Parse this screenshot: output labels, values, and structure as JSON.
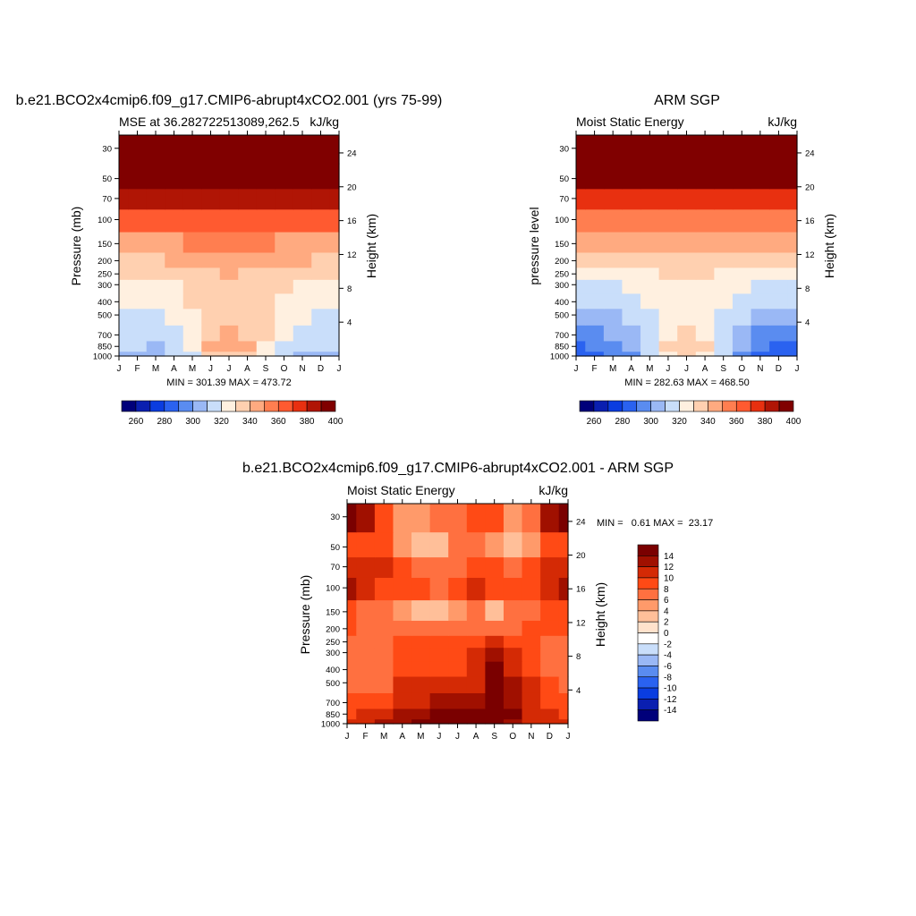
{
  "colors": {
    "mse_palette": [
      "#00007a",
      "#0a1fb0",
      "#0a3de0",
      "#2a62f0",
      "#5a8cf0",
      "#9ab8f5",
      "#c9defa",
      "#fff0e0",
      "#ffd0b0",
      "#ffaa80",
      "#ff7e50",
      "#ff5a30",
      "#e83010",
      "#b01505",
      "#800000"
    ],
    "diff_palette": [
      "#00007a",
      "#0a1fb0",
      "#0a3de0",
      "#2a62f0",
      "#5a8cf0",
      "#9ab8f5",
      "#c9defa",
      "#ffffff",
      "#ffe2cc",
      "#ffbf99",
      "#ff9a6a",
      "#ff7040",
      "#ff4a15",
      "#d42a05",
      "#a01000",
      "#7a0000"
    ]
  },
  "panels": {
    "model": {
      "title": "b.e21.BCO2x4cmip6.f09_g17.CMIP6-abrupt4xCO2.001 (yrs 75-99)",
      "left_label": "MSE at 36.282722513089,262.5",
      "right_label": "kJ/kg",
      "ylabel": "Pressure (mb)",
      "y2label": "Height (km)",
      "stats": "MIN = 301.39 MAX = 473.72"
    },
    "obs": {
      "title": "ARM SGP",
      "left_label": "Moist Static Energy",
      "right_label": "kJ/kg",
      "ylabel": "pressure level",
      "y2label": "Height (km)",
      "stats": "MIN = 282.63 MAX = 468.50"
    },
    "diff": {
      "title": "b.e21.BCO2x4cmip6.f09_g17.CMIP6-abrupt4xCO2.001 - ARM SGP",
      "left_label": "Moist Static Energy",
      "right_label": "kJ/kg",
      "ylabel": "Pressure (mb)",
      "y2label": "Height (km)",
      "stats": "MIN =   0.61 MAX =  23.17"
    }
  },
  "chart_data": [
    {
      "type": "heatmap",
      "id": "model",
      "title": "b.e21.BCO2x4cmip6.f09_g17.CMIP6-abrupt4xCO2.001 (yrs 75-99)",
      "ylabel": "Pressure (mb)",
      "y2label": "Height (km)",
      "x_ticklabels": [
        "J",
        "F",
        "M",
        "A",
        "M",
        "J",
        "J",
        "A",
        "S",
        "O",
        "N",
        "D",
        "J"
      ],
      "y_ticklabels": [
        "30",
        "50",
        "70",
        "100",
        "150",
        "200",
        "250",
        "300",
        "400",
        "500",
        "700",
        "850",
        "1000"
      ],
      "y2_ticklabels": [
        "24",
        "20",
        "16",
        "12",
        "8",
        "4"
      ],
      "y2_ticks_km": [
        24,
        20,
        16,
        12,
        8,
        4
      ],
      "levels": [
        1000,
        850,
        700,
        500,
        400,
        300,
        250,
        200,
        150,
        100,
        70,
        50,
        30
      ],
      "values": [
        [
          308,
          307,
          305,
          310,
          318,
          332,
          337,
          334,
          322,
          313,
          308,
          306,
          308
        ],
        [
          311,
          310,
          309,
          313,
          323,
          340,
          343,
          341,
          328,
          317,
          311,
          310,
          311
        ],
        [
          316,
          315,
          314,
          318,
          327,
          338,
          341,
          338,
          332,
          321,
          316,
          315,
          316
        ],
        [
          318,
          318,
          318,
          322,
          328,
          333,
          331,
          333,
          331,
          326,
          320,
          318,
          318
        ],
        [
          322,
          322,
          322,
          325,
          330,
          334,
          334,
          334,
          332,
          328,
          324,
          322,
          322
        ],
        [
          326,
          326,
          326,
          329,
          333,
          336,
          336,
          336,
          334,
          331,
          327,
          326,
          326
        ],
        [
          331,
          331,
          331,
          333,
          336,
          339,
          340,
          339,
          337,
          334,
          332,
          331,
          331
        ],
        [
          339,
          339,
          339,
          341,
          343,
          345,
          345,
          345,
          344,
          342,
          340,
          339,
          339
        ],
        [
          348,
          348,
          348,
          349,
          350,
          351,
          351,
          351,
          350,
          349,
          348,
          348,
          348
        ],
        [
          362,
          362,
          361,
          361,
          361,
          362,
          363,
          364,
          364,
          364,
          363,
          362,
          362
        ],
        [
          384,
          384,
          383,
          383,
          383,
          384,
          384,
          384,
          385,
          386,
          385,
          384,
          384
        ],
        [
          420,
          421,
          422,
          423,
          425,
          427,
          428,
          427,
          425,
          423,
          421,
          420,
          420
        ],
        [
          460,
          460,
          462,
          464,
          466,
          468,
          469,
          468,
          466,
          464,
          462,
          460,
          460
        ]
      ],
      "colorbar_levels": [
        250,
        260,
        270,
        280,
        290,
        300,
        310,
        320,
        330,
        340,
        350,
        360,
        370,
        380,
        390,
        400
      ],
      "colorbar_labels": [
        "260",
        "280",
        "300",
        "320",
        "340",
        "360",
        "380",
        "400"
      ]
    },
    {
      "type": "heatmap",
      "id": "obs",
      "title": "ARM SGP",
      "ylabel": "pressure level",
      "y2label": "Height (km)",
      "x_ticklabels": [
        "J",
        "F",
        "M",
        "A",
        "M",
        "J",
        "J",
        "A",
        "S",
        "O",
        "N",
        "D",
        "J"
      ],
      "y_ticklabels": [
        "30",
        "50",
        "70",
        "100",
        "150",
        "200",
        "250",
        "300",
        "400",
        "500",
        "700",
        "850",
        "1000"
      ],
      "y2_ticklabels": [
        "24",
        "20",
        "16",
        "12",
        "8",
        "4"
      ],
      "y2_ticks_km": [
        24,
        20,
        16,
        12,
        8,
        4
      ],
      "levels": [
        1000,
        850,
        700,
        500,
        400,
        300,
        250,
        200,
        150,
        100,
        70,
        50,
        30
      ],
      "values": [
        [
          285,
          287,
          290,
          297,
          312,
          327,
          334,
          329,
          314,
          299,
          289,
          286,
          285
        ],
        [
          288,
          290,
          294,
          301,
          315,
          330,
          336,
          332,
          318,
          303,
          293,
          289,
          288
        ],
        [
          295,
          297,
          300,
          306,
          316,
          327,
          331,
          328,
          318,
          306,
          298,
          295,
          295
        ],
        [
          303,
          304,
          306,
          311,
          318,
          324,
          325,
          323,
          318,
          311,
          305,
          303,
          303
        ],
        [
          310,
          311,
          313,
          317,
          321,
          325,
          326,
          325,
          321,
          316,
          312,
          310,
          310
        ],
        [
          316,
          317,
          318,
          321,
          324,
          327,
          328,
          327,
          324,
          320,
          317,
          316,
          316
        ],
        [
          322,
          323,
          324,
          326,
          328,
          330,
          331,
          330,
          328,
          325,
          323,
          322,
          322
        ],
        [
          330,
          331,
          331,
          333,
          335,
          337,
          338,
          337,
          334,
          332,
          331,
          330,
          330
        ],
        [
          341,
          341,
          342,
          343,
          344,
          345,
          346,
          345,
          344,
          343,
          342,
          341,
          341
        ],
        [
          355,
          355,
          355,
          356,
          357,
          358,
          358,
          358,
          357,
          356,
          355,
          355,
          355
        ],
        [
          377,
          377,
          377,
          378,
          378,
          379,
          379,
          379,
          379,
          378,
          378,
          377,
          377
        ],
        [
          412,
          412,
          413,
          414,
          416,
          417,
          418,
          417,
          416,
          414,
          413,
          412,
          412
        ],
        [
          452,
          452,
          453,
          455,
          457,
          459,
          460,
          459,
          457,
          455,
          453,
          452,
          452
        ]
      ],
      "colorbar_levels": [
        250,
        260,
        270,
        280,
        290,
        300,
        310,
        320,
        330,
        340,
        350,
        360,
        370,
        380,
        390,
        400
      ],
      "colorbar_labels": [
        "260",
        "280",
        "300",
        "320",
        "340",
        "360",
        "380",
        "400"
      ]
    },
    {
      "type": "heatmap",
      "id": "diff",
      "title": "b.e21.BCO2x4cmip6.f09_g17.CMIP6-abrupt4xCO2.001 - ARM SGP",
      "ylabel": "Pressure (mb)",
      "y2label": "Height (km)",
      "x_ticklabels": [
        "J",
        "F",
        "M",
        "A",
        "M",
        "J",
        "J",
        "A",
        "S",
        "O",
        "N",
        "D",
        "J"
      ],
      "y_ticklabels": [
        "30",
        "50",
        "70",
        "100",
        "150",
        "200",
        "250",
        "300",
        "400",
        "500",
        "700",
        "850",
        "1000"
      ],
      "y2_ticklabels": [
        "24",
        "20",
        "16",
        "12",
        "8",
        "4"
      ],
      "y2_ticks_km": [
        24,
        20,
        16,
        12,
        8,
        4
      ],
      "levels": [
        1000,
        850,
        700,
        500,
        400,
        300,
        250,
        200,
        150,
        100,
        70,
        50,
        30
      ],
      "values": [
        [
          10,
          11,
          12,
          13,
          15,
          16,
          16,
          17,
          21,
          13,
          11,
          10,
          10
        ],
        [
          9,
          10,
          10,
          12,
          13,
          14,
          15,
          16,
          19,
          14,
          11,
          10,
          9
        ],
        [
          8,
          8,
          8,
          10,
          11,
          12,
          12,
          13,
          16,
          12,
          10,
          9,
          8
        ],
        [
          7,
          7,
          7,
          10,
          10,
          10,
          10,
          11,
          15,
          12,
          10,
          8,
          7
        ],
        [
          6,
          6,
          7,
          9,
          9,
          9,
          9,
          10,
          14,
          11,
          9,
          7,
          6
        ],
        [
          7,
          7,
          7,
          9,
          9,
          9,
          9,
          10,
          12,
          10,
          9,
          7,
          7
        ],
        [
          7,
          7,
          7,
          8,
          8,
          8,
          9,
          9,
          10,
          9,
          9,
          7,
          7
        ],
        [
          8,
          7,
          6,
          7,
          6,
          6,
          7,
          7,
          7,
          7,
          8,
          8,
          8
        ],
        [
          9,
          7,
          6,
          4,
          3,
          2,
          5,
          6,
          3,
          6,
          7,
          8,
          9
        ],
        [
          12,
          11,
          9,
          8,
          8,
          6,
          9,
          11,
          9,
          8,
          8,
          10,
          12
        ],
        [
          11,
          11,
          10,
          9,
          7,
          6,
          7,
          9,
          8,
          7,
          9,
          11,
          11
        ],
        [
          9,
          9,
          8,
          5,
          3,
          3,
          6,
          7,
          5,
          2,
          5,
          8,
          9
        ],
        [
          16,
          13,
          9,
          5,
          4,
          6,
          6,
          9,
          9,
          5,
          6,
          12,
          16
        ]
      ],
      "colorbar_levels": [
        -16,
        -14,
        -12,
        -10,
        -8,
        -6,
        -4,
        -2,
        0,
        2,
        4,
        6,
        8,
        10,
        12,
        14,
        16
      ],
      "colorbar_labels": [
        "14",
        "12",
        "10",
        "8",
        "6",
        "4",
        "2",
        "0",
        "-2",
        "-4",
        "-6",
        "-8",
        "-10",
        "-12",
        "-14"
      ]
    }
  ]
}
